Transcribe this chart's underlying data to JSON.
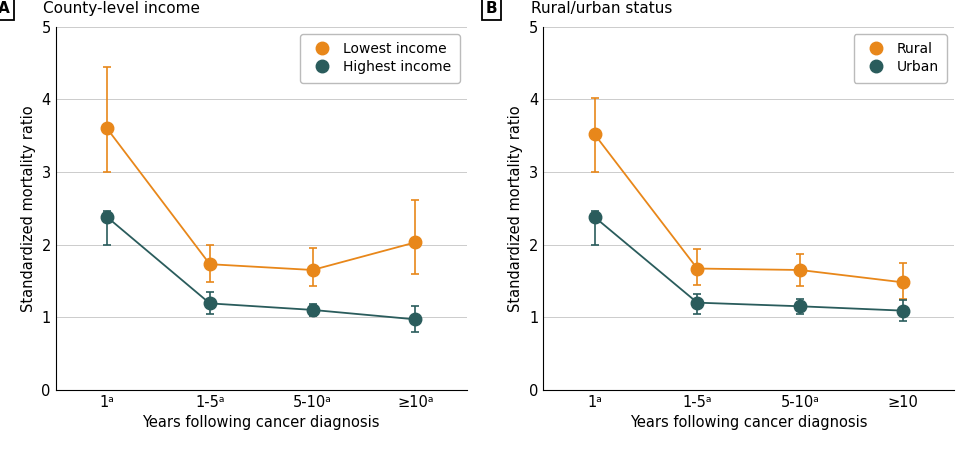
{
  "panel_A": {
    "title": "County-level income",
    "label": "A",
    "series": [
      {
        "name": "Lowest income",
        "color": "#E8871A",
        "values": [
          3.6,
          1.73,
          1.65,
          2.03
        ],
        "yerr_low": [
          0.6,
          0.25,
          0.22,
          0.43
        ],
        "yerr_high": [
          0.85,
          0.27,
          0.3,
          0.58
        ]
      },
      {
        "name": "Highest income",
        "color": "#2A5C5C",
        "values": [
          2.38,
          1.19,
          1.1,
          0.97
        ],
        "yerr_low": [
          0.38,
          0.15,
          0.08,
          0.18
        ],
        "yerr_high": [
          0.08,
          0.15,
          0.08,
          0.18
        ]
      }
    ],
    "xtick_labels": [
      "1ᵃ",
      "1-5ᵃ",
      "5-10ᵃ",
      "≥10ᵃ"
    ],
    "ylabel": "Standardized mortality ratio",
    "xlabel": "Years following cancer diagnosis",
    "ylim": [
      0,
      5
    ],
    "yticks": [
      0,
      1,
      2,
      3,
      4,
      5
    ]
  },
  "panel_B": {
    "title": "Rural/urban status",
    "label": "B",
    "series": [
      {
        "name": "Rural",
        "color": "#E8871A",
        "values": [
          3.52,
          1.67,
          1.65,
          1.48
        ],
        "yerr_low": [
          0.52,
          0.22,
          0.22,
          0.23
        ],
        "yerr_high": [
          0.5,
          0.27,
          0.22,
          0.27
        ]
      },
      {
        "name": "Urban",
        "color": "#2A5C5C",
        "values": [
          2.38,
          1.2,
          1.15,
          1.09
        ],
        "yerr_low": [
          0.38,
          0.15,
          0.1,
          0.14
        ],
        "yerr_high": [
          0.08,
          0.12,
          0.1,
          0.14
        ]
      }
    ],
    "xtick_labels": [
      "1ᵃ",
      "1-5ᵃ",
      "5-10ᵃ",
      "≥10"
    ],
    "ylabel": "Standardized mortality ratio",
    "xlabel": "Years following cancer diagnosis",
    "ylim": [
      0,
      5
    ],
    "yticks": [
      0,
      1,
      2,
      3,
      4,
      5
    ]
  },
  "background_color": "#FFFFFF",
  "grid_color": "#CCCCCC",
  "marker_size": 9,
  "linewidth": 1.3,
  "capsize": 3,
  "elinewidth": 1.2,
  "capthick": 1.2
}
